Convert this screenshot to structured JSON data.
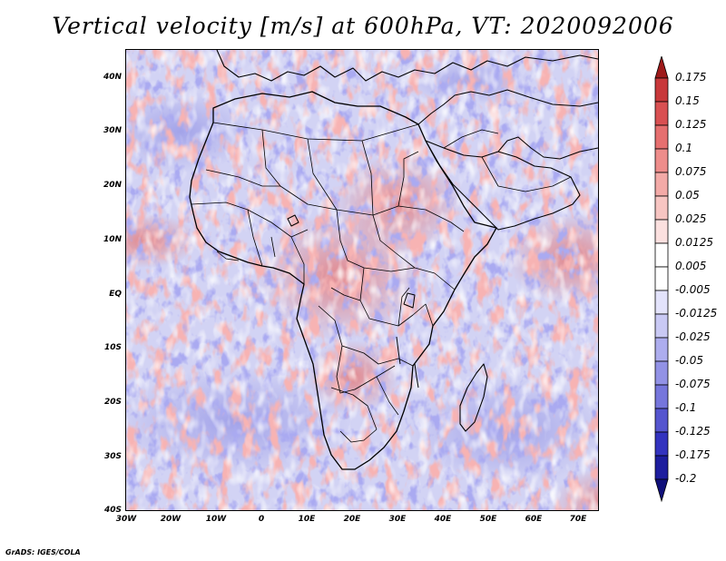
{
  "title": "Vertical velocity [m/s] at 600hPa, VT: 2020092006",
  "footer": "GrADS: IGES/COLA",
  "map": {
    "lat_labels": [
      "40N",
      "30N",
      "20N",
      "10N",
      "EQ",
      "10S",
      "20S",
      "30S",
      "40S"
    ],
    "lon_labels": [
      "30W",
      "20W",
      "10W",
      "0",
      "10E",
      "20E",
      "30E",
      "40E",
      "50E",
      "60E",
      "70E"
    ],
    "lon_range": [
      -30,
      75
    ],
    "lat_range": [
      -40,
      45
    ]
  },
  "colorbar": {
    "labels": [
      "0.175",
      "0.15",
      "0.125",
      "0.1",
      "0.075",
      "0.05",
      "0.025",
      "0.0125",
      "0.005",
      "-0.005",
      "-0.0125",
      "-0.025",
      "-0.05",
      "-0.075",
      "-0.1",
      "-0.125",
      "-0.175",
      "-0.2"
    ],
    "colors": [
      "#9e1a1a",
      "#c8383a",
      "#d95052",
      "#e66f6f",
      "#ee8d8b",
      "#f3aaa7",
      "#f7c5c2",
      "#fbe0df",
      "#ffffff",
      "#ffffff",
      "#e3e3fb",
      "#c9c9f4",
      "#adadee",
      "#9292e6",
      "#7676dc",
      "#5555cf",
      "#3333bf",
      "#1d1d9e",
      "#10107a"
    ]
  }
}
